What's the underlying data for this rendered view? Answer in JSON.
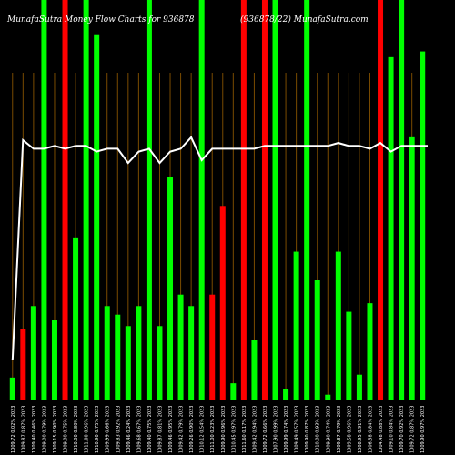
{
  "chart_data": {
    "type": "bar",
    "title_left": "MunafaSutra  Money  Flow  Charts for 936878",
    "title_right": "(936878/22) MunafaSutra.com",
    "categories": [
      "1009.72 0.02% 2023",
      "1009.87 0.87% 2023",
      "1009.40 0.46% 2023",
      "1009.00 0.79% 2023",
      "1009.15 0.90% 2023",
      "1009.00 0.75% 2023",
      "1010.00 0.80% 2023",
      "1011.00 0.96% 2023",
      "1010.90 0.75% 2023",
      "1009.99 0.66% 2023",
      "1009.83 0.92% 2023",
      "1009.46 0.24% 2023",
      "1009.68 0.67% 2023",
      "1009.40 0.75% 2023",
      "1009.87 0.81% 2023",
      "1009.46 0.95% 2023",
      "1009.42 0.79% 2023",
      "1009.26 0.90% 2023",
      "1010.12 0.54% 2023",
      "1011.00 0.23% 2023",
      "1009.90 0.96% 2023",
      "1010.45 0.97% 2023",
      "1011.60 0.17% 2023",
      "1009.42 0.94% 2023",
      "1009.72 0.66% 2023",
      "1007.90 0.99% 2023",
      "1009.99 0.74% 2023",
      "1009.49 0.57% 2023",
      "1009.90 0.87% 2023",
      "1010.00 0.93% 2023",
      "1009.90 0.74% 2023",
      "1009.87 0.79% 2023",
      "1009.58 0.96% 2023",
      "1008.95 0.91% 2023",
      "1006.58 0.84% 2023",
      "1004.48 0.88% 2023",
      "1009.10 0.84% 2023",
      "1009.70 0.92% 2023",
      "1009.72 0.87% 2023",
      "1009.90 0.97% 2023"
    ],
    "values": [
      8,
      25,
      33,
      120,
      28,
      122,
      57,
      128,
      128,
      33,
      30,
      26,
      33,
      120,
      26,
      78,
      37,
      33,
      128,
      37,
      68,
      6,
      122,
      21,
      132,
      128,
      4,
      52,
      132,
      42,
      2,
      52,
      31,
      9,
      34,
      114,
      120,
      120,
      92,
      122
    ],
    "bar_colors": [
      "#00ff00",
      "#ff0000",
      "#00ff00",
      "#00ff00",
      "#00ff00",
      "#ff0000",
      "#00ff00",
      "#00ff00",
      "#00ff00",
      "#00ff00",
      "#00ff00",
      "#00ff00",
      "#00ff00",
      "#00ff00",
      "#00ff00",
      "#00ff00",
      "#00ff00",
      "#00ff00",
      "#00ff00",
      "#ff0000",
      "#ff0000",
      "#00ff00",
      "#ff0000",
      "#00ff00",
      "#ff0000",
      "#00ff00",
      "#00ff00",
      "#00ff00",
      "#00ff00",
      "#00ff00",
      "#00ff00",
      "#00ff00",
      "#00ff00",
      "#00ff00",
      "#00ff00",
      "#ff0000",
      "#00ff00",
      "#00ff00",
      "#00ff00",
      "#00ff00"
    ],
    "bar_full": [
      false,
      false,
      false,
      true,
      false,
      true,
      false,
      true,
      false,
      false,
      false,
      false,
      false,
      true,
      false,
      false,
      false,
      false,
      true,
      false,
      false,
      false,
      true,
      false,
      true,
      true,
      false,
      false,
      true,
      false,
      false,
      false,
      false,
      false,
      false,
      true,
      false,
      true,
      false,
      false
    ],
    "line_values": [
      14,
      91,
      88,
      88,
      89,
      88,
      89,
      89,
      87,
      88,
      88,
      83,
      87,
      88,
      83,
      87,
      88,
      92,
      84,
      88,
      88,
      88,
      88,
      88,
      89,
      89,
      89,
      89,
      89,
      89,
      89,
      90,
      89,
      89,
      88,
      90,
      87,
      89,
      89,
      89
    ],
    "ylim": [
      0,
      140
    ],
    "bar_width_scale": 1,
    "grid": "vertical dark orange lines",
    "colors": {
      "background": "#000000",
      "up": "#00ff00",
      "down": "#ff0000",
      "line": "#ffffff",
      "grid": "#7a4b00"
    }
  }
}
